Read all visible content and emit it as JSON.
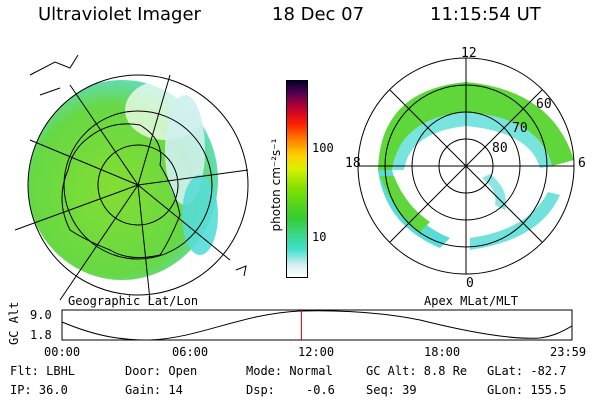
{
  "header": {
    "instrument": "Ultraviolet Imager",
    "date": "18 Dec 07",
    "time": "11:15:54 UT"
  },
  "left_map": {
    "caption": "Geographic Lat/Lon"
  },
  "colorbar": {
    "unit_label": "photon cm⁻²s⁻¹",
    "tick_labels": [
      "100",
      "10"
    ],
    "tick_values": [
      100,
      10
    ],
    "range": [
      2,
      1000
    ],
    "scale": "log",
    "colors": [
      "#ffffff",
      "#d8f0f0",
      "#40e0d0",
      "#33cc33",
      "#7fe000",
      "#d8f000",
      "#ffd000",
      "#ff8000",
      "#ff2000",
      "#c00030",
      "#600050",
      "#000030"
    ]
  },
  "right_map": {
    "caption": "Apex MLat/MLT",
    "mlt_labels": {
      "top": "12",
      "left": "18",
      "right": "6",
      "bottom": "0"
    },
    "mlat_labels": [
      "60",
      "70",
      "80"
    ]
  },
  "altitude_plot": {
    "ylabel": "GC Alt",
    "y_ticks": [
      "9.0",
      "1.8"
    ],
    "x_ticks": [
      "00:00",
      "06:00",
      "12:00",
      "18:00",
      "23:59"
    ],
    "marker_hour": 11.265
  },
  "info": {
    "filter": "Flt: LBHL",
    "ip": "IP: 36.0",
    "door": "Door: Open",
    "gain": "Gain: 14",
    "mode": "Mode: Normal",
    "dsp_label": "Dsp:",
    "dsp_value": "-0.6",
    "gc_alt": "GC Alt: 8.8 Re",
    "seq": "Seq: 39",
    "glat": "GLat: -82.7",
    "glon": "GLon: 155.5"
  },
  "colors": {
    "aurora_green": "#5fd63a",
    "aurora_lime": "#9be01c",
    "aurora_cyan": "#57dcd6",
    "marker_red": "#cc0000"
  }
}
